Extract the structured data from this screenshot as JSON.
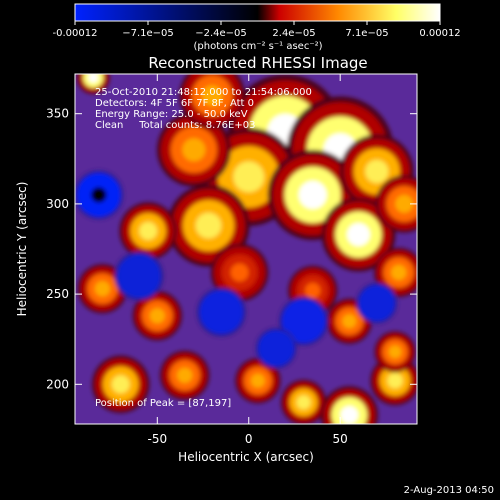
{
  "chart_data": {
    "type": "heatmap",
    "title": "Reconstructed RHESSI Image",
    "xlabel": "Heliocentric X (arcsec)",
    "ylabel": "Heliocentric Y (arcsec)",
    "xlim": [
      -95,
      92
    ],
    "ylim": [
      178,
      372
    ],
    "xticks": [
      -50,
      0,
      50
    ],
    "yticks": [
      200,
      250,
      300,
      350
    ],
    "colorbar": {
      "range": [
        -0.00012,
        0.00012
      ],
      "ticks": [
        "-0.00012",
        "−7.1e−05",
        "−2.4e−05",
        "2.4e−05",
        "7.1e−05",
        "0.00012"
      ],
      "label": "(photons cm⁻² s⁻¹ asec⁻²)",
      "colors": [
        "#0022ff",
        "#000000",
        "#cc0000",
        "#ff8800",
        "#ffff66",
        "#ffffff"
      ]
    },
    "background_color": "#5a2a9a",
    "blobs": [
      {
        "x": 20,
        "y": 340,
        "v": 0.95,
        "r": 28
      },
      {
        "x": 50,
        "y": 330,
        "v": 0.9,
        "r": 26
      },
      {
        "x": 0,
        "y": 315,
        "v": 0.75,
        "r": 24
      },
      {
        "x": 35,
        "y": 305,
        "v": 0.9,
        "r": 22
      },
      {
        "x": 70,
        "y": 318,
        "v": 0.7,
        "r": 18
      },
      {
        "x": 60,
        "y": 283,
        "v": 1.0,
        "r": 18
      },
      {
        "x": -22,
        "y": 288,
        "v": 0.7,
        "r": 20
      },
      {
        "x": -55,
        "y": 285,
        "v": 0.85,
        "r": 14
      },
      {
        "x": -30,
        "y": 330,
        "v": 0.5,
        "r": 18
      },
      {
        "x": 85,
        "y": 300,
        "v": 0.6,
        "r": 14
      },
      {
        "x": 82,
        "y": 262,
        "v": 0.65,
        "r": 12
      },
      {
        "x": -5,
        "y": 262,
        "v": 0.45,
        "r": 14
      },
      {
        "x": -80,
        "y": 253,
        "v": 0.55,
        "r": 12
      },
      {
        "x": -50,
        "y": 238,
        "v": 0.5,
        "r": 12
      },
      {
        "x": 35,
        "y": 252,
        "v": 0.45,
        "r": 12
      },
      {
        "x": 55,
        "y": 235,
        "v": 0.5,
        "r": 11
      },
      {
        "x": -70,
        "y": 200,
        "v": 0.8,
        "r": 14
      },
      {
        "x": -35,
        "y": 205,
        "v": 0.6,
        "r": 12
      },
      {
        "x": 5,
        "y": 202,
        "v": 0.6,
        "r": 11
      },
      {
        "x": 30,
        "y": 190,
        "v": 0.7,
        "r": 11
      },
      {
        "x": 55,
        "y": 183,
        "v": 0.95,
        "r": 14
      },
      {
        "x": 80,
        "y": 202,
        "v": 0.85,
        "r": 12
      },
      {
        "x": 80,
        "y": 218,
        "v": 0.6,
        "r": 10
      },
      {
        "x": -20,
        "y": 360,
        "v": 0.6,
        "r": 16
      },
      {
        "x": -85,
        "y": 370,
        "v": 0.9,
        "r": 8
      },
      {
        "x": -82,
        "y": 305,
        "v": -0.95,
        "r": 12
      },
      {
        "x": 30,
        "y": 235,
        "v": -0.6,
        "r": 12
      },
      {
        "x": -15,
        "y": 240,
        "v": -0.45,
        "r": 12
      },
      {
        "x": 70,
        "y": 245,
        "v": -0.35,
        "r": 10
      },
      {
        "x": -60,
        "y": 260,
        "v": -0.3,
        "r": 12
      },
      {
        "x": 15,
        "y": 220,
        "v": -0.35,
        "r": 10
      }
    ],
    "peak_marker": {
      "x": 87,
      "y": 197
    }
  },
  "info": {
    "line1": "25-Oct-2010 21:48:12.000 to 21:54:06.000",
    "line2": "Detectors: 4F 5F 6F 7F 8F, Att 0",
    "line3": "Energy Range: 25.0 - 50.0 keV",
    "line4": "Clean     Total counts: 8.76E+03",
    "peak_text": "Position of Peak = [87,197]"
  },
  "date_stamp": "2-Aug-2013 04:50"
}
